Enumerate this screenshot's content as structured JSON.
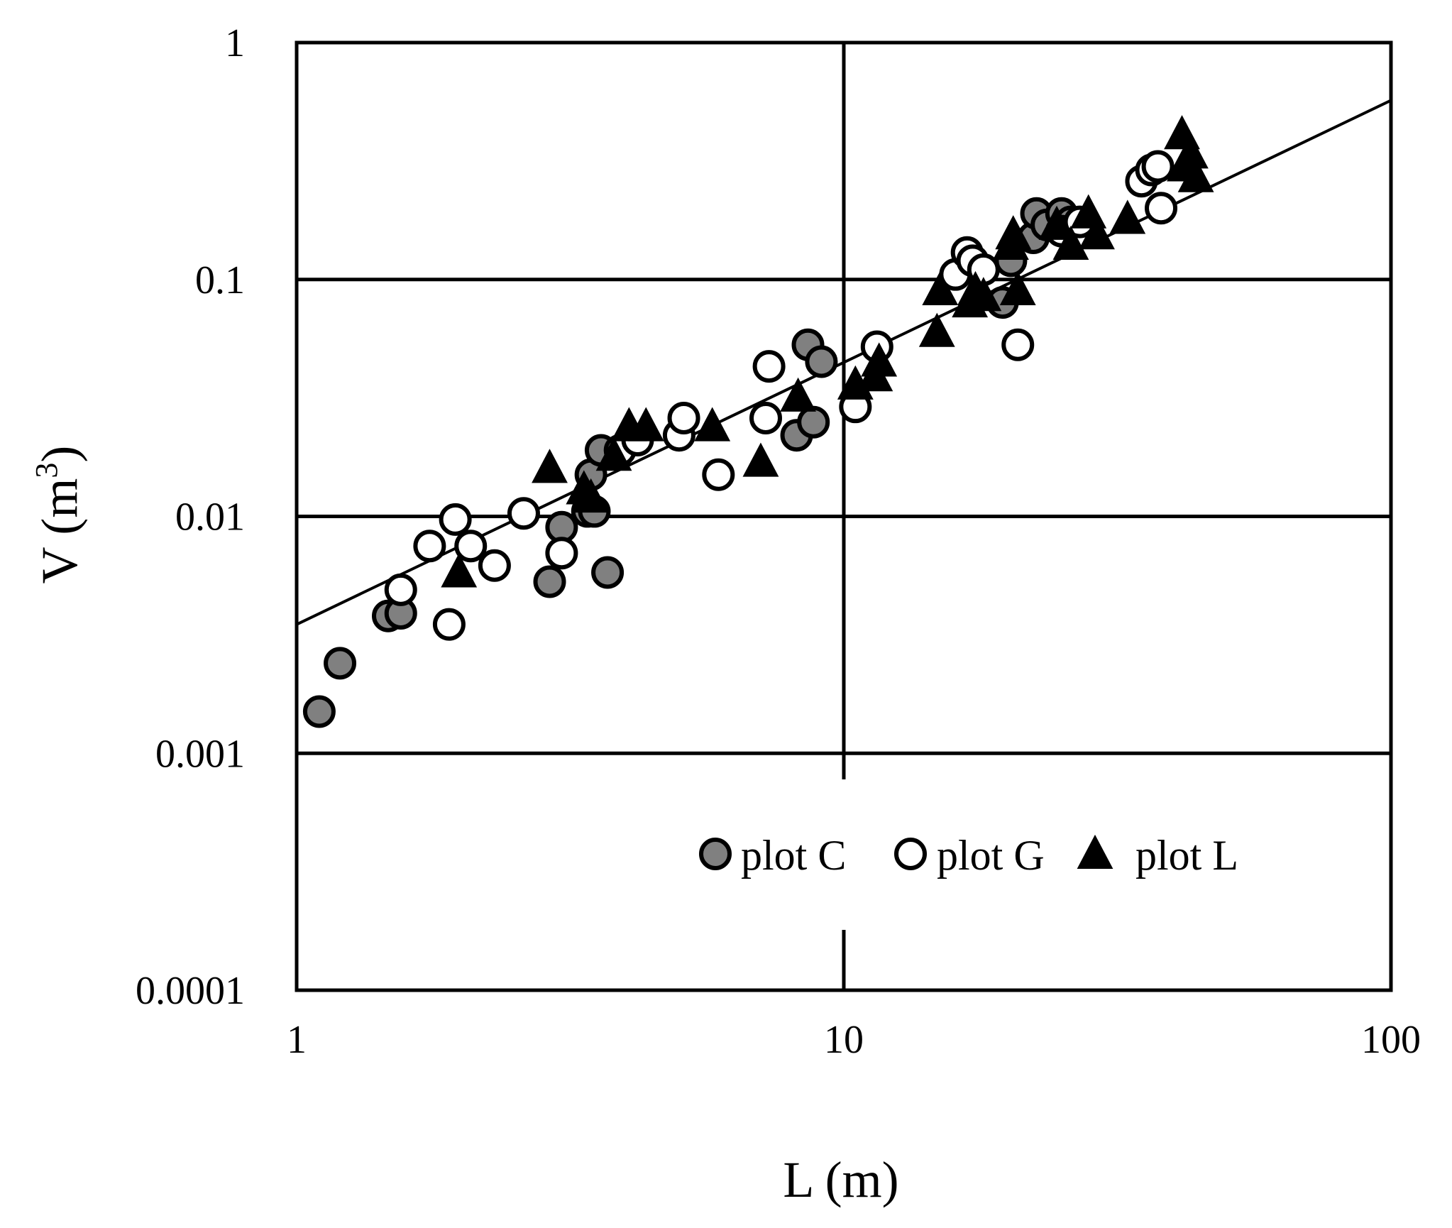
{
  "chart_data": {
    "type": "scatter",
    "xlabel": "L (m)",
    "ylabel_main": "V (m",
    "ylabel_sup": "3",
    "ylabel_close": ")",
    "x_scale": "log",
    "y_scale": "log",
    "xlim": [
      1,
      100
    ],
    "ylim": [
      0.0001,
      1
    ],
    "x_ticks": [
      {
        "value": 1,
        "label": "1"
      },
      {
        "value": 10,
        "label": "10"
      },
      {
        "value": 100,
        "label": "100"
      }
    ],
    "y_ticks": [
      {
        "value": 0.0001,
        "label": "0.0001"
      },
      {
        "value": 0.001,
        "label": "0.001"
      },
      {
        "value": 0.01,
        "label": "0.01"
      },
      {
        "value": 0.1,
        "label": "0.1"
      },
      {
        "value": 1,
        "label": "1"
      }
    ],
    "grid": true,
    "legend_position": "bottom-right",
    "colors": {
      "plot_c_fill": "#808080",
      "stroke": "#000000",
      "background": "#ffffff"
    },
    "series": [
      {
        "name": "plot C",
        "marker": "circle-gray",
        "points": [
          [
            1.1,
            0.0015
          ],
          [
            1.2,
            0.0024
          ],
          [
            1.47,
            0.0038
          ],
          [
            1.55,
            0.0039
          ],
          [
            2.9,
            0.0053
          ],
          [
            3.05,
            0.009
          ],
          [
            3.4,
            0.0105
          ],
          [
            3.5,
            0.0105
          ],
          [
            3.45,
            0.015
          ],
          [
            3.6,
            0.019
          ],
          [
            3.7,
            0.0058
          ],
          [
            8.2,
            0.022
          ],
          [
            8.8,
            0.025
          ],
          [
            8.6,
            0.053
          ],
          [
            9.1,
            0.045
          ],
          [
            19.5,
            0.08
          ],
          [
            20.2,
            0.12
          ],
          [
            22.2,
            0.15
          ],
          [
            22.5,
            0.19
          ],
          [
            23.5,
            0.17
          ],
          [
            25.0,
            0.19
          ],
          [
            26.0,
            0.175
          ]
        ]
      },
      {
        "name": "plot G",
        "marker": "circle-open",
        "points": [
          [
            1.55,
            0.0049
          ],
          [
            1.75,
            0.0075
          ],
          [
            1.9,
            0.0035
          ],
          [
            1.95,
            0.0097
          ],
          [
            2.08,
            0.0075
          ],
          [
            2.3,
            0.0062
          ],
          [
            2.6,
            0.0103
          ],
          [
            3.05,
            0.007
          ],
          [
            3.9,
            0.019
          ],
          [
            4.2,
            0.021
          ],
          [
            5.0,
            0.022
          ],
          [
            5.1,
            0.026
          ],
          [
            5.9,
            0.015
          ],
          [
            7.2,
            0.026
          ],
          [
            7.3,
            0.043
          ],
          [
            10.5,
            0.029
          ],
          [
            11.5,
            0.052
          ],
          [
            16.0,
            0.105
          ],
          [
            16.8,
            0.13
          ],
          [
            17.2,
            0.12
          ],
          [
            18.0,
            0.11
          ],
          [
            20.8,
            0.053
          ],
          [
            25.0,
            0.16
          ],
          [
            27.0,
            0.175
          ],
          [
            35.0,
            0.26
          ],
          [
            36.5,
            0.29
          ],
          [
            37.5,
            0.3
          ],
          [
            38.0,
            0.2
          ]
        ]
      },
      {
        "name": "plot L",
        "marker": "triangle-filled",
        "points": [
          [
            1.98,
            0.0058
          ],
          [
            2.9,
            0.016
          ],
          [
            3.35,
            0.013
          ],
          [
            3.45,
            0.012
          ],
          [
            3.8,
            0.018
          ],
          [
            4.05,
            0.024
          ],
          [
            4.35,
            0.024
          ],
          [
            5.75,
            0.024
          ],
          [
            7.05,
            0.017
          ],
          [
            8.25,
            0.032
          ],
          [
            10.5,
            0.036
          ],
          [
            11.4,
            0.039
          ],
          [
            11.6,
            0.045
          ],
          [
            14.8,
            0.06
          ],
          [
            15.0,
            0.09
          ],
          [
            17.0,
            0.08
          ],
          [
            17.4,
            0.09
          ],
          [
            18.0,
            0.085
          ],
          [
            20.2,
            0.14
          ],
          [
            20.4,
            0.155
          ],
          [
            20.8,
            0.09
          ],
          [
            24.5,
            0.17
          ],
          [
            26.0,
            0.14
          ],
          [
            28.0,
            0.19
          ],
          [
            29.0,
            0.155
          ],
          [
            33.0,
            0.18
          ],
          [
            41.5,
            0.41
          ],
          [
            42.0,
            0.3
          ],
          [
            43.0,
            0.34
          ],
          [
            44.0,
            0.27
          ]
        ]
      }
    ],
    "trendline": {
      "type": "power",
      "x_range": [
        1,
        100
      ],
      "y_range": [
        0.0035,
        0.57
      ]
    }
  }
}
